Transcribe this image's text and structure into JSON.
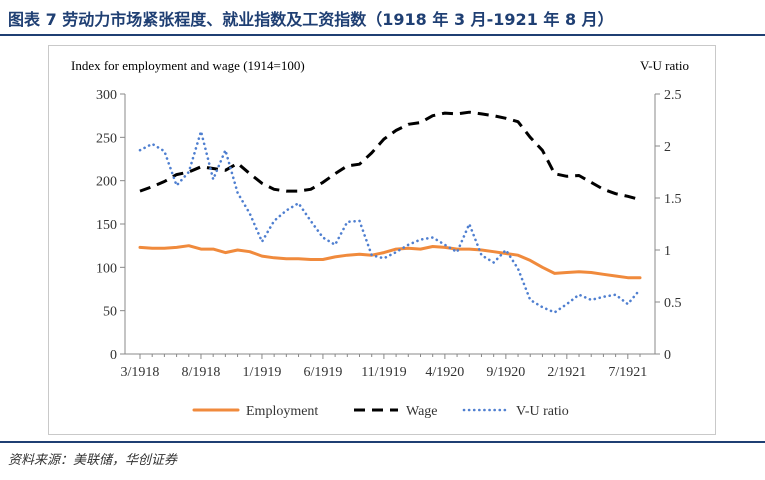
{
  "header": {
    "title": "图表 7  劳动力市场紧张程度、就业指数及工资指数（1918 年 3 月-1921 年 8 月）"
  },
  "footer": {
    "source": "资料来源：美联储，华创证券"
  },
  "chart_data": {
    "type": "line",
    "left_axis_label": "Index for employment and wage (1914=100)",
    "right_axis_label": "V-U ratio",
    "ylim_left": [
      0,
      300
    ],
    "ylim_right": [
      0,
      2.5
    ],
    "yticks_left": [
      "0",
      "50",
      "100",
      "150",
      "200",
      "250",
      "300"
    ],
    "yticks_right": [
      "0",
      "0.5",
      "1",
      "1.5",
      "2",
      "2.5"
    ],
    "x": [
      "3/1918",
      "4/1918",
      "5/1918",
      "6/1918",
      "7/1918",
      "8/1918",
      "9/1918",
      "10/1918",
      "11/1918",
      "12/1918",
      "1/1919",
      "2/1919",
      "3/1919",
      "4/1919",
      "5/1919",
      "6/1919",
      "7/1919",
      "8/1919",
      "9/1919",
      "10/1919",
      "11/1919",
      "12/1919",
      "1/1920",
      "2/1920",
      "3/1920",
      "4/1920",
      "5/1920",
      "6/1920",
      "7/1920",
      "8/1920",
      "9/1920",
      "10/1920",
      "11/1920",
      "12/1920",
      "1/1921",
      "2/1921",
      "3/1921",
      "4/1921",
      "5/1921",
      "6/1921",
      "7/1921",
      "8/1921"
    ],
    "xticks": [
      "3/1918",
      "8/1918",
      "1/1919",
      "6/1919",
      "11/1919",
      "4/1920",
      "9/1920",
      "2/1921",
      "7/1921"
    ],
    "series": [
      {
        "name": "Employment",
        "axis": "left",
        "color": "#f08a3c",
        "style": "solid",
        "values": [
          123,
          122,
          122,
          123,
          125,
          121,
          121,
          117,
          120,
          118,
          113,
          111,
          110,
          110,
          109,
          109,
          112,
          114,
          115,
          114,
          117,
          121,
          122,
          121,
          124,
          123,
          121,
          121,
          120,
          118,
          116,
          114,
          108,
          100,
          93,
          94,
          95,
          94,
          92,
          90,
          88,
          88
        ]
      },
      {
        "name": "Wage",
        "axis": "left",
        "color": "#000000",
        "style": "dash",
        "values": [
          188,
          193,
          199,
          207,
          210,
          216,
          214,
          212,
          220,
          208,
          197,
          190,
          188,
          188,
          190,
          198,
          208,
          217,
          219,
          232,
          248,
          258,
          265,
          267,
          275,
          278,
          277,
          279,
          277,
          275,
          272,
          268,
          250,
          235,
          208,
          205,
          206,
          198,
          190,
          185,
          182,
          178
        ]
      },
      {
        "name": "V-U ratio",
        "axis": "right",
        "color": "#4f7fd0",
        "style": "dot",
        "values": [
          1.96,
          2.02,
          1.95,
          1.62,
          1.75,
          2.14,
          1.68,
          1.96,
          1.55,
          1.35,
          1.08,
          1.28,
          1.38,
          1.45,
          1.28,
          1.12,
          1.05,
          1.27,
          1.28,
          0.95,
          0.92,
          0.98,
          1.05,
          1.1,
          1.12,
          1.05,
          0.98,
          1.25,
          0.95,
          0.88,
          1.0,
          0.82,
          0.52,
          0.45,
          0.4,
          0.48,
          0.57,
          0.52,
          0.55,
          0.57,
          0.48,
          0.62
        ]
      }
    ],
    "legend_position": "bottom",
    "grid": false
  }
}
